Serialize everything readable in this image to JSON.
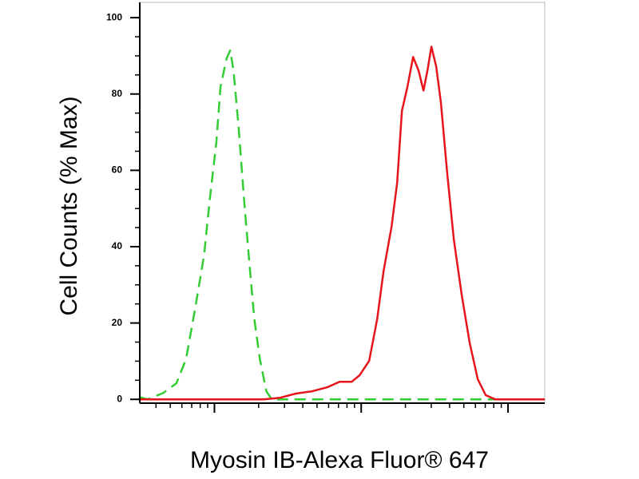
{
  "chart_data": {
    "type": "line",
    "x_label": "Myosin IB-Alexa Fluor® 647",
    "y_label": "Cell Counts (% Max)",
    "x_scale": "log",
    "xlim": [
      31,
      17800
    ],
    "xticks": [
      100,
      1000,
      10000
    ],
    "ylim": [
      -1,
      104
    ],
    "yticks": [
      0,
      20,
      40,
      60,
      80,
      100
    ],
    "series": [
      {
        "color": "#33cc33",
        "line_style": "dashed",
        "x": [
          31,
          35,
          45,
          55,
          64,
          75,
          85,
          93,
          103,
          110,
          121,
          128,
          135,
          146,
          159,
          173,
          187,
          204,
          226,
          246,
          521,
          17800
        ],
        "values": [
          0.6,
          0,
          1.7,
          4.2,
          10.5,
          25.2,
          37.8,
          52.5,
          67.2,
          81.9,
          89.3,
          91.4,
          86.1,
          71.4,
          52.5,
          35.7,
          21,
          10.5,
          2.1,
          0,
          0,
          0
        ]
      },
      {
        "color": "#e8141c",
        "line_style": "solid",
        "x": [
          31,
          217,
          279,
          358,
          460,
          591,
          713,
          861,
          975,
          1133,
          1285,
          1420,
          1610,
          1757,
          1893,
          2066,
          2256,
          2462,
          2655,
          2825,
          3006,
          3243,
          3493,
          3862,
          4270,
          4841,
          5487,
          6218,
          7047,
          8185,
          17800
        ],
        "values": [
          0,
          0,
          0.4,
          1.5,
          2.1,
          3.2,
          4.6,
          4.6,
          6.3,
          10.1,
          21,
          33.6,
          45.2,
          56.7,
          75.6,
          81.9,
          89.7,
          86.1,
          80.9,
          86.1,
          92.4,
          87.2,
          77.7,
          58.8,
          42,
          27.3,
          14.7,
          5.3,
          1.1,
          0,
          0
        ]
      }
    ]
  }
}
